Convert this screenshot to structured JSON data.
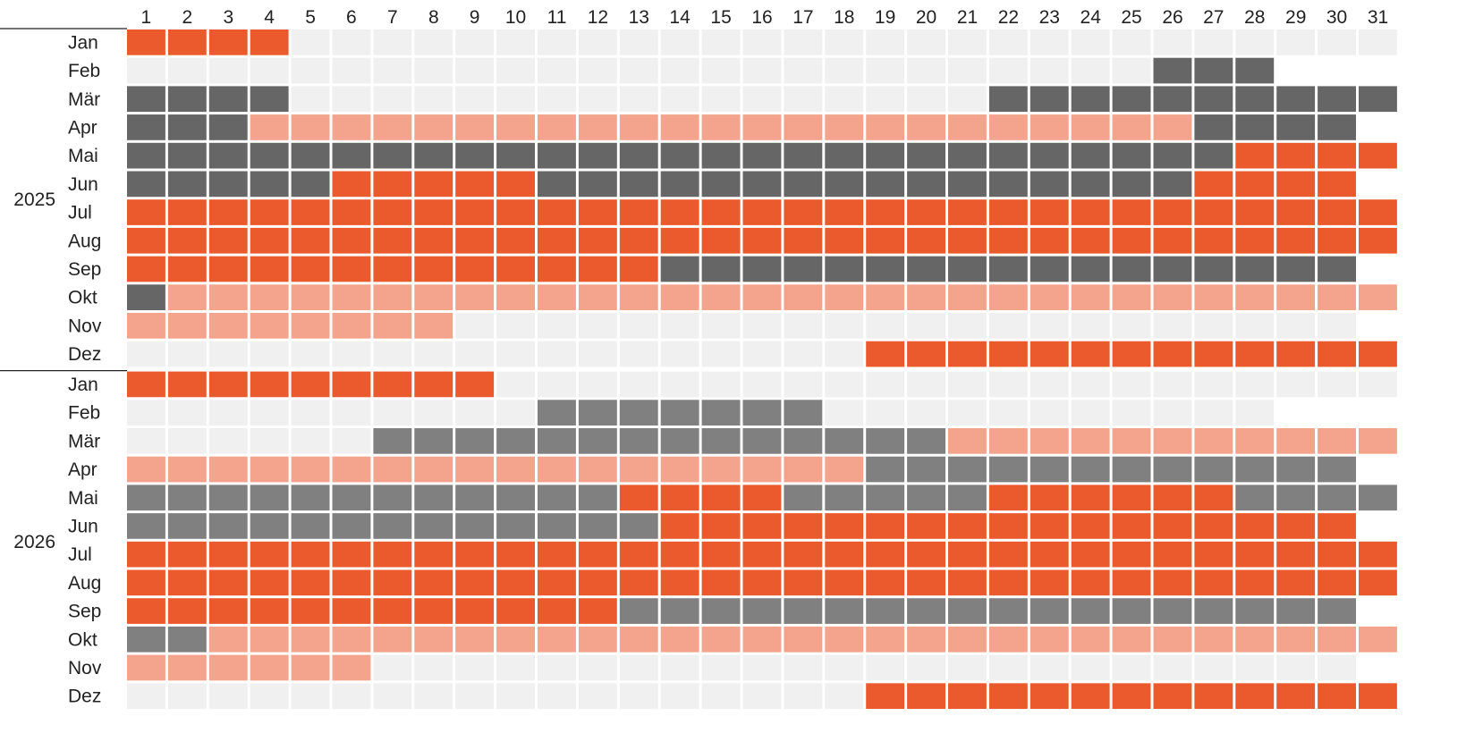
{
  "chart_data": {
    "type": "heatmap",
    "days": [
      "1",
      "2",
      "3",
      "4",
      "5",
      "6",
      "7",
      "8",
      "9",
      "10",
      "11",
      "12",
      "13",
      "14",
      "15",
      "16",
      "17",
      "18",
      "19",
      "20",
      "21",
      "22",
      "23",
      "24",
      "25",
      "26",
      "27",
      "28",
      "29",
      "30",
      "31"
    ],
    "colors": {
      "empty": "#f0f0f0",
      "orange": "#eb5a2d",
      "light": "#f4a48c",
      "dark": "#666666",
      "gray": "#808080"
    },
    "years": [
      {
        "year": "2025",
        "months": [
          {
            "label": "Jan",
            "days": 31,
            "segments": [
              [
                "orange",
                1,
                4
              ]
            ]
          },
          {
            "label": "Feb",
            "days": 28,
            "segments": [
              [
                "dark",
                26,
                28
              ]
            ]
          },
          {
            "label": "Mär",
            "days": 31,
            "segments": [
              [
                "dark",
                1,
                4
              ],
              [
                "dark",
                22,
                31
              ]
            ]
          },
          {
            "label": "Apr",
            "days": 30,
            "segments": [
              [
                "dark",
                1,
                3
              ],
              [
                "light",
                4,
                26
              ],
              [
                "dark",
                27,
                30
              ]
            ]
          },
          {
            "label": "Mai",
            "days": 31,
            "segments": [
              [
                "dark",
                1,
                27
              ],
              [
                "orange",
                28,
                31
              ]
            ]
          },
          {
            "label": "Jun",
            "days": 30,
            "segments": [
              [
                "dark",
                1,
                5
              ],
              [
                "orange",
                6,
                10
              ],
              [
                "dark",
                11,
                26
              ],
              [
                "orange",
                27,
                30
              ]
            ]
          },
          {
            "label": "Jul",
            "days": 31,
            "segments": [
              [
                "orange",
                1,
                31
              ]
            ]
          },
          {
            "label": "Aug",
            "days": 31,
            "segments": [
              [
                "orange",
                1,
                31
              ]
            ]
          },
          {
            "label": "Sep",
            "days": 30,
            "segments": [
              [
                "orange",
                1,
                13
              ],
              [
                "dark",
                14,
                30
              ]
            ]
          },
          {
            "label": "Okt",
            "days": 31,
            "segments": [
              [
                "dark",
                1,
                1
              ],
              [
                "light",
                2,
                31
              ]
            ]
          },
          {
            "label": "Nov",
            "days": 30,
            "segments": [
              [
                "light",
                1,
                8
              ]
            ]
          },
          {
            "label": "Dez",
            "days": 31,
            "segments": [
              [
                "orange",
                19,
                31
              ]
            ]
          }
        ]
      },
      {
        "year": "2026",
        "months": [
          {
            "label": "Jan",
            "days": 31,
            "segments": [
              [
                "orange",
                1,
                9
              ]
            ]
          },
          {
            "label": "Feb",
            "days": 28,
            "segments": [
              [
                "gray",
                11,
                17
              ]
            ]
          },
          {
            "label": "Mär",
            "days": 31,
            "segments": [
              [
                "gray",
                7,
                20
              ],
              [
                "light",
                21,
                31
              ]
            ]
          },
          {
            "label": "Apr",
            "days": 30,
            "segments": [
              [
                "light",
                1,
                18
              ],
              [
                "gray",
                19,
                30
              ]
            ]
          },
          {
            "label": "Mai",
            "days": 31,
            "segments": [
              [
                "gray",
                1,
                12
              ],
              [
                "orange",
                13,
                16
              ],
              [
                "gray",
                17,
                21
              ],
              [
                "orange",
                22,
                27
              ],
              [
                "gray",
                28,
                31
              ]
            ]
          },
          {
            "label": "Jun",
            "days": 30,
            "segments": [
              [
                "gray",
                1,
                13
              ],
              [
                "orange",
                14,
                30
              ]
            ]
          },
          {
            "label": "Jul",
            "days": 31,
            "segments": [
              [
                "orange",
                1,
                31
              ]
            ]
          },
          {
            "label": "Aug",
            "days": 31,
            "segments": [
              [
                "orange",
                1,
                31
              ]
            ]
          },
          {
            "label": "Sep",
            "days": 30,
            "segments": [
              [
                "orange",
                1,
                12
              ],
              [
                "gray",
                13,
                30
              ]
            ]
          },
          {
            "label": "Okt",
            "days": 31,
            "segments": [
              [
                "gray",
                1,
                2
              ],
              [
                "light",
                3,
                31
              ]
            ]
          },
          {
            "label": "Nov",
            "days": 30,
            "segments": [
              [
                "light",
                1,
                6
              ]
            ]
          },
          {
            "label": "Dez",
            "days": 31,
            "segments": [
              [
                "orange",
                19,
                31
              ]
            ]
          }
        ]
      }
    ]
  }
}
